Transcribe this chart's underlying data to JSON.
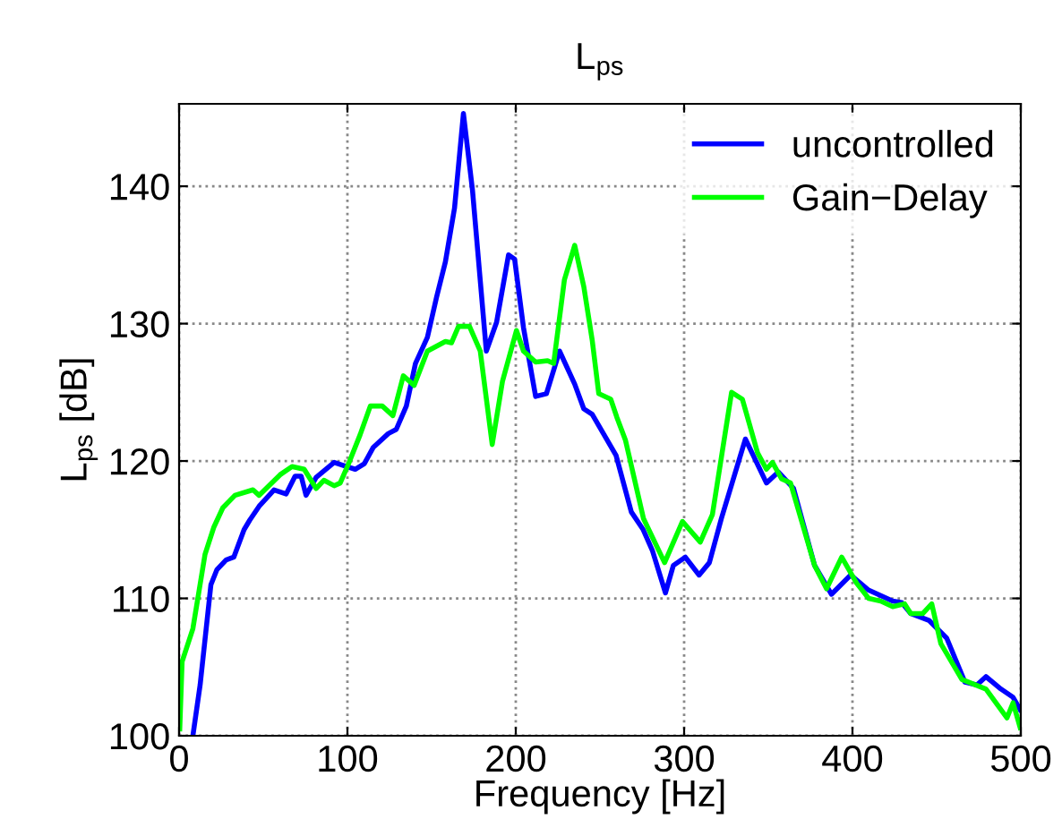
{
  "chart_data": {
    "type": "line",
    "title": "L$_{ps}$",
    "xlabel": "Frequency [Hz]",
    "ylabel": "L$_{ps}$ [dB]",
    "xlim": [
      0,
      500
    ],
    "ylim": [
      100,
      146
    ],
    "xticks": [
      0,
      100,
      200,
      300,
      400,
      500
    ],
    "yticks": [
      100,
      110,
      120,
      130,
      140
    ],
    "grid": true,
    "legend": "top right",
    "line_style": "solid",
    "marker": "none",
    "series": [
      {
        "name": "uncontrolled",
        "color": "#0000ff",
        "x": [
          8.2,
          12.5,
          18.9,
          22.5,
          27.9,
          32.5,
          38.6,
          42,
          47.5,
          56.4,
          63.6,
          68.9,
          72.5,
          75.4,
          81.4,
          92.1,
          99.3,
          104.6,
          110,
          115.4,
          124.3,
          129,
          135,
          140.4,
          147.5,
          152.9,
          158.2,
          163.6,
          168.9,
          174.3,
          182.5,
          188.6,
          195.7,
          199.3,
          204.6,
          211.8,
          218.2,
          226,
          235,
          240.4,
          245.4,
          252.5,
          259.6,
          268.6,
          275.7,
          281.1,
          288.9,
          293.6,
          300.7,
          308.9,
          315,
          322.1,
          336.4,
          348.9,
          356,
          365,
          377.5,
          387.5,
          398.9,
          409.6,
          423.9,
          429.3,
          434.6,
          445.4,
          456,
          466.8,
          473.9,
          479.3,
          488.2,
          495.4,
          499.6
        ],
        "values": [
          100,
          103.7,
          111,
          112.1,
          112.8,
          113,
          115,
          115.7,
          116.7,
          117.9,
          117.6,
          118.9,
          118.9,
          117.5,
          118.8,
          119.9,
          119.6,
          119.4,
          119.8,
          121,
          122,
          122.3,
          124,
          127.1,
          129,
          131.9,
          134.5,
          138.4,
          145.3,
          139.7,
          128,
          130.1,
          135,
          134.7,
          129.7,
          124.7,
          124.9,
          128,
          125.6,
          123.8,
          123.4,
          121.9,
          120.4,
          116.3,
          115,
          113.5,
          110.4,
          112.4,
          113,
          111.7,
          112.6,
          115.8,
          121.6,
          118.4,
          119.2,
          118,
          112.4,
          110.3,
          111.7,
          110.6,
          109.8,
          109.7,
          108.9,
          108.4,
          107.1,
          103.9,
          103.7,
          104.3,
          103.4,
          102.8,
          101.9
        ]
      },
      {
        "name": "Gain−Delay",
        "color": "#00ff00",
        "x": [
          0.4,
          1.8,
          8.2,
          15.4,
          20.7,
          26,
          33.2,
          43.9,
          47.5,
          60,
          67.1,
          74.3,
          81.4,
          86,
          92.1,
          95.7,
          101,
          107.5,
          113.6,
          120.7,
          127,
          133.2,
          139.6,
          147.5,
          158.2,
          161.8,
          166,
          172.5,
          178.9,
          186,
          192.1,
          200.4,
          204.6,
          211.8,
          218.9,
          222.5,
          228.9,
          235,
          240.4,
          245.4,
          249.3,
          256.4,
          260,
          265.2,
          275.9,
          288.4,
          299,
          309.6,
          316.8,
          328.2,
          334.6,
          343.6,
          348.9,
          352.5,
          357.9,
          363.2,
          377.5,
          384.6,
          393.6,
          402.5,
          409.6,
          416.8,
          423.9,
          431,
          434.6,
          441.8,
          447.1,
          452.5,
          465,
          479.3,
          491.8,
          495.4,
          499.6
        ],
        "values": [
          100.5,
          105.4,
          107.8,
          113.2,
          115.2,
          116.6,
          117.5,
          117.9,
          117.5,
          119,
          119.6,
          119.4,
          118,
          118.6,
          118.2,
          118.4,
          119.9,
          121.9,
          124,
          124,
          123.3,
          126.2,
          125.5,
          128,
          128.7,
          128.6,
          129.8,
          129.8,
          128,
          121.2,
          125.8,
          129.5,
          128,
          127.2,
          127.3,
          127.1,
          133.2,
          135.7,
          132.7,
          128.8,
          124.9,
          124.5,
          123.2,
          121.5,
          115.8,
          112.6,
          115.6,
          114.1,
          116.1,
          125,
          124.5,
          120.6,
          119.4,
          119.9,
          118.7,
          118.4,
          112.4,
          110.7,
          113,
          111.1,
          110,
          109.8,
          109.4,
          109.6,
          108.9,
          108.9,
          109.6,
          106.7,
          104.1,
          103.4,
          101.3,
          102.4,
          100.6
        ]
      }
    ]
  }
}
